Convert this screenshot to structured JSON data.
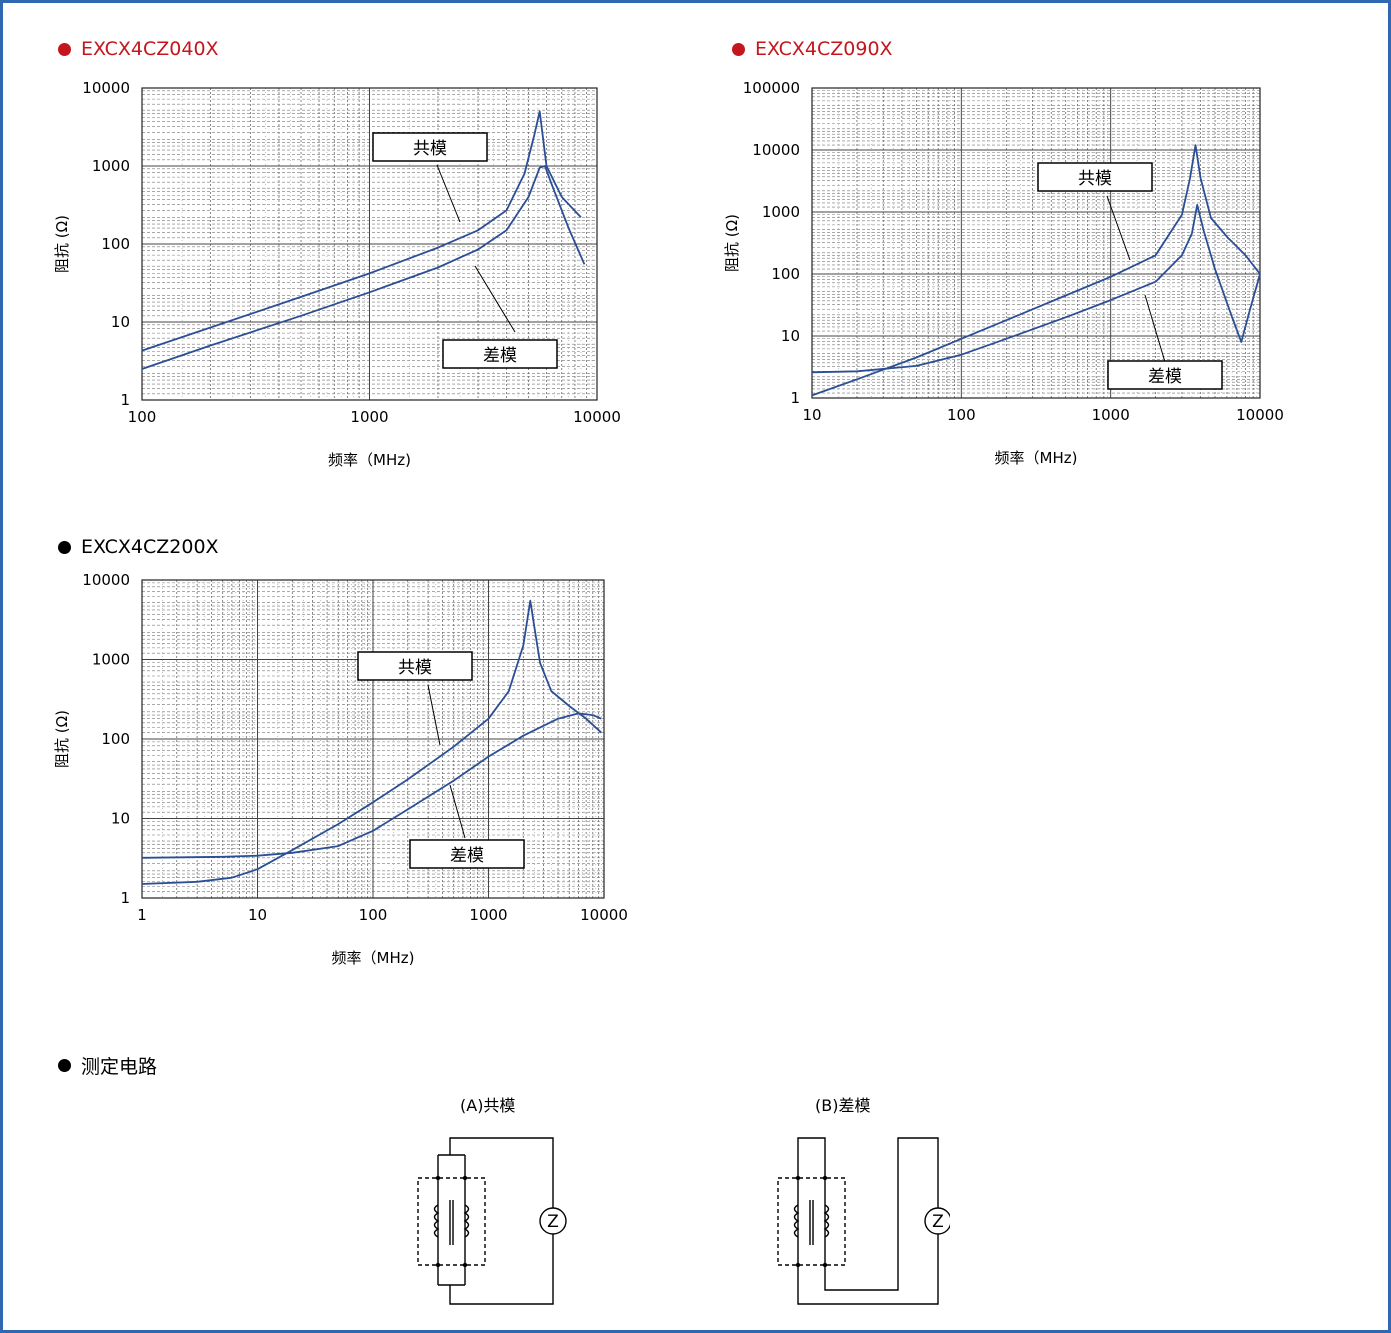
{
  "colors": {
    "frame": "#2f67b1",
    "title_red": "#c4161c",
    "curve": "#2b4f96",
    "grid": "#555555"
  },
  "chart_data": [
    {
      "type": "line",
      "title": "EXCX4CZ040X",
      "title_color": "#c4161c",
      "xlabel": "频率（MHz)",
      "ylabel": "阻抗 (Ω)",
      "x_scale": "log",
      "y_scale": "log",
      "xlim": [
        100,
        10000
      ],
      "ylim": [
        1,
        10000
      ],
      "x_ticks": [
        "100",
        "1000",
        "10000"
      ],
      "y_ticks": [
        "1",
        "10",
        "100",
        "1000",
        "10000"
      ],
      "grid": true,
      "series": [
        {
          "name": "共模",
          "x": [
            100,
            200,
            500,
            1000,
            2000,
            3000,
            4000,
            4800,
            5300,
            5600,
            6000,
            7000,
            8500
          ],
          "y": [
            4.3,
            8.5,
            21,
            42,
            90,
            150,
            270,
            800,
            2500,
            5000,
            1000,
            400,
            220
          ]
        },
        {
          "name": "差模",
          "x": [
            100,
            200,
            500,
            1000,
            2000,
            3000,
            4000,
            5000,
            5600,
            5900,
            6300,
            7500,
            8800
          ],
          "y": [
            2.5,
            5,
            12,
            24,
            50,
            85,
            150,
            400,
            950,
            1000,
            600,
            160,
            55
          ]
        }
      ]
    },
    {
      "type": "line",
      "title": "EXCX4CZ090X",
      "title_color": "#c4161c",
      "xlabel": "频率（MHz)",
      "ylabel": "阻抗 (Ω)",
      "x_scale": "log",
      "y_scale": "log",
      "xlim": [
        10,
        10000
      ],
      "ylim": [
        1,
        100000
      ],
      "x_ticks": [
        "10",
        "100",
        "1000",
        "10000"
      ],
      "y_ticks": [
        "1",
        "10",
        "100",
        "1000",
        "10000",
        "100000"
      ],
      "grid": true,
      "series": [
        {
          "name": "共模",
          "x": [
            10,
            20,
            50,
            100,
            200,
            500,
            1000,
            2000,
            3000,
            3400,
            3700,
            4000,
            4700,
            6000,
            8000,
            10000
          ],
          "y": [
            1.1,
            2,
            4.5,
            9,
            18,
            45,
            90,
            200,
            900,
            3500,
            12000,
            3500,
            800,
            400,
            200,
            100
          ]
        },
        {
          "name": "差模",
          "x": [
            10,
            20,
            50,
            100,
            200,
            500,
            1000,
            2000,
            3000,
            3500,
            3800,
            4200,
            5000,
            6500,
            7500,
            8500,
            10000
          ],
          "y": [
            2.6,
            2.7,
            3.3,
            5,
            9,
            20,
            38,
            75,
            200,
            450,
            1300,
            500,
            120,
            20,
            8,
            25,
            100
          ]
        }
      ]
    },
    {
      "type": "line",
      "title": "EXCX4CZ200X",
      "title_color": "#000000",
      "xlabel": "频率（MHz)",
      "ylabel": "阻抗 (Ω)",
      "x_scale": "log",
      "y_scale": "log",
      "xlim": [
        1,
        10000
      ],
      "ylim": [
        1,
        10000
      ],
      "x_ticks": [
        "1",
        "10",
        "100",
        "1000",
        "10000"
      ],
      "y_ticks": [
        "1",
        "10",
        "100",
        "1000",
        "10000"
      ],
      "grid": true,
      "series": [
        {
          "name": "共模",
          "x": [
            1,
            3,
            6,
            10,
            20,
            50,
            100,
            200,
            500,
            1000,
            1500,
            2000,
            2300,
            2500,
            2800,
            3500,
            5000,
            7000,
            9500
          ],
          "y": [
            1.5,
            1.6,
            1.8,
            2.3,
            4,
            8.5,
            16,
            31,
            80,
            180,
            400,
            1500,
            5500,
            2500,
            900,
            400,
            260,
            180,
            120
          ]
        },
        {
          "name": "差模",
          "x": [
            1,
            5,
            10,
            20,
            50,
            100,
            200,
            500,
            1000,
            2000,
            4000,
            6000,
            8000,
            9500
          ],
          "y": [
            3.2,
            3.3,
            3.4,
            3.7,
            4.5,
            7,
            13,
            30,
            60,
            110,
            180,
            210,
            200,
            180
          ]
        }
      ]
    }
  ],
  "circuit": {
    "title": "测定电路",
    "a_label": "(A)共模",
    "b_label": "(B)差模",
    "meter_symbol": "Z"
  }
}
